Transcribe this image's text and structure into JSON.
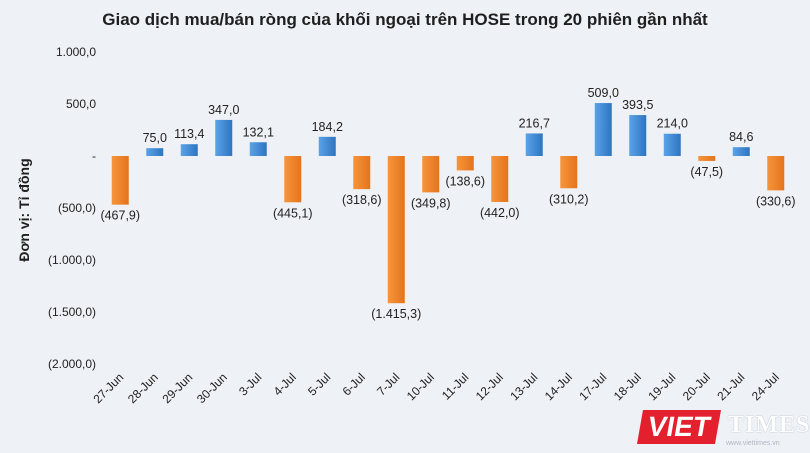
{
  "chart_data": {
    "type": "bar",
    "title": "Giao dịch mua/bán ròng của khối ngoại trên HOSE trong 20 phiên gần nhất",
    "ylabel": "Đơn vị: Tỉ đồng",
    "xlabel": "",
    "ylim": [
      -2000,
      1000
    ],
    "yticks": [
      1000,
      500,
      0,
      -500,
      -1000,
      -1500,
      -2000
    ],
    "ytick_labels": [
      "1.000,0",
      "500,0",
      "-",
      "(500,0)",
      "(1.000,0)",
      "(1.500,0)",
      "(2.000,0)"
    ],
    "categories": [
      "27-Jun",
      "28-Jun",
      "29-Jun",
      "30-Jun",
      "3-Jul",
      "4-Jul",
      "5-Jul",
      "6-Jul",
      "7-Jul",
      "10-Jul",
      "11-Jul",
      "12-Jul",
      "13-Jul",
      "14-Jul",
      "17-Jul",
      "18-Jul",
      "19-Jul",
      "20-Jul",
      "21-Jul",
      "24-Jul"
    ],
    "values": [
      -467.9,
      75.0,
      113.4,
      347.0,
      132.1,
      -445.1,
      184.2,
      -318.6,
      -1415.3,
      -349.8,
      -138.6,
      -442.0,
      216.7,
      -310.2,
      509.0,
      393.5,
      214.0,
      -47.5,
      84.6,
      -330.6
    ],
    "value_labels": [
      "(467,9)",
      "75,0",
      "113,4",
      "347,0",
      "132,1",
      "(445,1)",
      "184,2",
      "(318,6)",
      "(1.415,3)",
      "(349,8)",
      "(138,6)",
      "(442,0)",
      "216,7",
      "(310,2)",
      "509,0",
      "393,5",
      "214,0",
      "(47,5)",
      "84,6",
      "(330,6)"
    ],
    "colors": {
      "positive": "#4a90d9",
      "negative": "#f0862e"
    },
    "grid": false,
    "legend": "none"
  },
  "watermark": {
    "brand_red": "VIET",
    "brand_white": "TIMES",
    "site": "www.viettimes.vn",
    "colors": {
      "red": "#e5202e"
    }
  }
}
